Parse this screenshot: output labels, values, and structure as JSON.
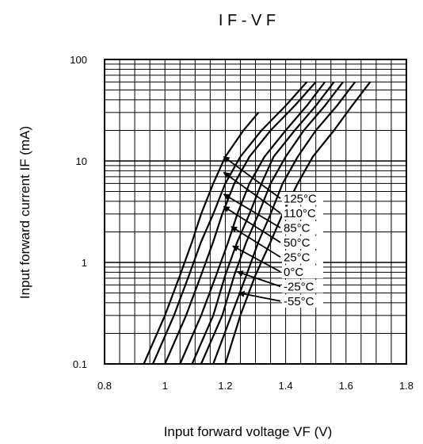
{
  "chart_data": {
    "type": "line",
    "title": "I F - V F",
    "xlabel": "Input forward voltage   VF   (V)",
    "ylabel": "Input forward current   IF   (mA)",
    "x_scale": "linear",
    "y_scale": "log",
    "xlim": [
      0.8,
      1.8
    ],
    "ylim": [
      0.1,
      100
    ],
    "x_ticks": [
      "0.8",
      "1",
      "1.2",
      "1.4",
      "1.6",
      "1.8"
    ],
    "y_ticks": [
      "0.1",
      "1",
      "10",
      "100"
    ],
    "grid": true,
    "series": [
      {
        "name": "125°C",
        "color": "#000000",
        "x": [
          0.93,
          1.0,
          1.05,
          1.09,
          1.12,
          1.16,
          1.2,
          1.26,
          1.31
        ],
        "y": [
          0.1,
          0.3,
          0.75,
          1.6,
          3,
          6,
          11,
          20,
          30
        ]
      },
      {
        "name": "110°C",
        "color": "#000000",
        "x": [
          0.96,
          1.03,
          1.08,
          1.12,
          1.16,
          1.2,
          1.25,
          1.32,
          1.4,
          1.47
        ],
        "y": [
          0.1,
          0.3,
          0.75,
          1.6,
          3,
          6,
          11,
          20,
          35,
          60
        ]
      },
      {
        "name": "85°C",
        "color": "#000000",
        "x": [
          1.0,
          1.07,
          1.12,
          1.16,
          1.19,
          1.23,
          1.28,
          1.35,
          1.43,
          1.5
        ],
        "y": [
          0.1,
          0.3,
          0.75,
          1.6,
          3,
          6,
          11,
          20,
          35,
          60
        ]
      },
      {
        "name": "50°C",
        "color": "#000000",
        "x": [
          1.05,
          1.12,
          1.17,
          1.21,
          1.24,
          1.28,
          1.33,
          1.4,
          1.47,
          1.53
        ],
        "y": [
          0.1,
          0.3,
          0.75,
          1.6,
          3,
          6,
          11,
          20,
          35,
          60
        ]
      },
      {
        "name": "25°C",
        "color": "#000000",
        "x": [
          1.09,
          1.16,
          1.2,
          1.24,
          1.28,
          1.32,
          1.36,
          1.43,
          1.5,
          1.56
        ],
        "y": [
          0.1,
          0.3,
          0.75,
          1.6,
          3,
          6,
          11,
          20,
          35,
          60
        ]
      },
      {
        "name": "0°C",
        "color": "#000000",
        "x": [
          1.12,
          1.19,
          1.23,
          1.27,
          1.31,
          1.35,
          1.4,
          1.46,
          1.53,
          1.59
        ],
        "y": [
          0.1,
          0.3,
          0.75,
          1.6,
          3,
          6,
          11,
          20,
          35,
          60
        ]
      },
      {
        "name": "-25°C",
        "color": "#000000",
        "x": [
          1.16,
          1.22,
          1.27,
          1.31,
          1.35,
          1.39,
          1.44,
          1.5,
          1.57,
          1.63
        ],
        "y": [
          0.1,
          0.3,
          0.75,
          1.6,
          3,
          6,
          11,
          20,
          35,
          60
        ]
      },
      {
        "name": "-55°C",
        "color": "#000000",
        "x": [
          1.2,
          1.25,
          1.3,
          1.35,
          1.39,
          1.44,
          1.49,
          1.56,
          1.62,
          1.68
        ],
        "y": [
          0.1,
          0.3,
          0.75,
          1.6,
          3,
          6,
          11,
          20,
          35,
          60
        ]
      }
    ],
    "annotations": [
      {
        "label": "125°C",
        "x": 1.195,
        "y": 11
      },
      {
        "label": "110°C",
        "x": 1.195,
        "y": 7.7
      },
      {
        "label": "85°C",
        "x": 1.195,
        "y": 4.7
      },
      {
        "label": "50°C",
        "x": 1.195,
        "y": 3.55
      },
      {
        "label": "25°C",
        "x": 1.22,
        "y": 2.25
      },
      {
        "label": "0°C",
        "x": 1.225,
        "y": 1.45
      },
      {
        "label": "-25°C",
        "x": 1.24,
        "y": 0.81
      },
      {
        "label": "-55°C",
        "x": 1.245,
        "y": 0.5
      }
    ]
  }
}
